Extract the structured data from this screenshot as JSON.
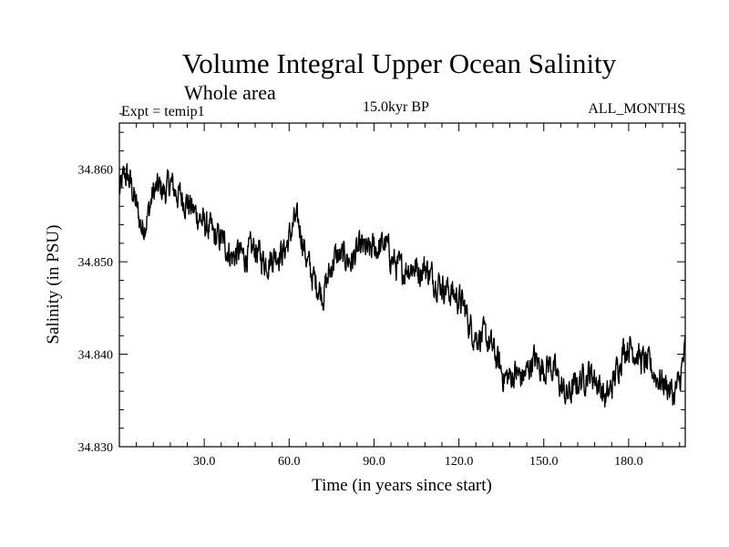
{
  "chart_data": {
    "type": "line",
    "title": "Volume Integral Upper Ocean Salinity",
    "subtitle": "Whole area",
    "experiment_label": "Expt = temip1",
    "period_label": "15.0kyr BP",
    "months_label": "ALL_MONTHS",
    "xlabel": "Time (in years since start)",
    "ylabel": "Salinity (in PSU)",
    "xlim": [
      0,
      200
    ],
    "ylim": [
      34.83,
      34.865
    ],
    "x_tick_labels": [
      "30.0",
      "60.0",
      "90.0",
      "120.0",
      "150.0",
      "180.0"
    ],
    "y_tick_labels": [
      "34.830",
      "34.840",
      "34.850",
      "34.860"
    ],
    "line_color": "#000000",
    "series": [
      {
        "name": "salinity",
        "x": [
          0,
          2,
          4,
          6,
          8,
          10,
          12,
          14,
          16,
          18,
          20,
          22,
          24,
          26,
          28,
          30,
          32,
          34,
          36,
          38,
          40,
          42,
          44,
          46,
          48,
          50,
          52,
          54,
          56,
          58,
          60,
          62,
          64,
          66,
          68,
          70,
          72,
          74,
          76,
          78,
          80,
          82,
          84,
          86,
          88,
          90,
          92,
          94,
          96,
          98,
          100,
          102,
          104,
          106,
          108,
          110,
          112,
          114,
          116,
          118,
          120,
          122,
          124,
          126,
          128,
          130,
          132,
          134,
          136,
          138,
          140,
          142,
          144,
          146,
          148,
          150,
          152,
          154,
          156,
          158,
          160,
          162,
          164,
          166,
          168,
          170,
          172,
          174,
          176,
          178,
          180,
          182,
          184,
          186,
          188,
          190,
          192,
          194,
          196,
          198,
          200
        ],
        "values": [
          34.8575,
          34.8595,
          34.8585,
          34.856,
          34.8535,
          34.855,
          34.8575,
          34.858,
          34.8575,
          34.8585,
          34.8575,
          34.857,
          34.8565,
          34.8555,
          34.855,
          34.854,
          34.8535,
          34.8525,
          34.8525,
          34.8515,
          34.8505,
          34.851,
          34.8505,
          34.851,
          34.8515,
          34.8505,
          34.85,
          34.8505,
          34.851,
          34.851,
          34.8525,
          34.8545,
          34.8535,
          34.8505,
          34.8485,
          34.8475,
          34.8465,
          34.8485,
          34.8505,
          34.8505,
          34.8505,
          34.85,
          34.851,
          34.8515,
          34.851,
          34.8515,
          34.8515,
          34.852,
          34.8505,
          34.8495,
          34.849,
          34.8495,
          34.8495,
          34.849,
          34.8495,
          34.8485,
          34.848,
          34.8475,
          34.847,
          34.8465,
          34.846,
          34.845,
          34.843,
          34.842,
          34.842,
          34.8415,
          34.8405,
          34.839,
          34.8375,
          34.8375,
          34.838,
          34.8375,
          34.838,
          34.8395,
          34.839,
          34.8385,
          34.839,
          34.838,
          34.8365,
          34.8355,
          34.836,
          34.837,
          34.8375,
          34.838,
          34.8375,
          34.8365,
          34.835,
          34.8365,
          34.8385,
          34.8405,
          34.841,
          34.8405,
          34.8395,
          34.839,
          34.8385,
          34.8375,
          34.837,
          34.8365,
          34.8355,
          34.837,
          34.8405
        ]
      }
    ]
  }
}
